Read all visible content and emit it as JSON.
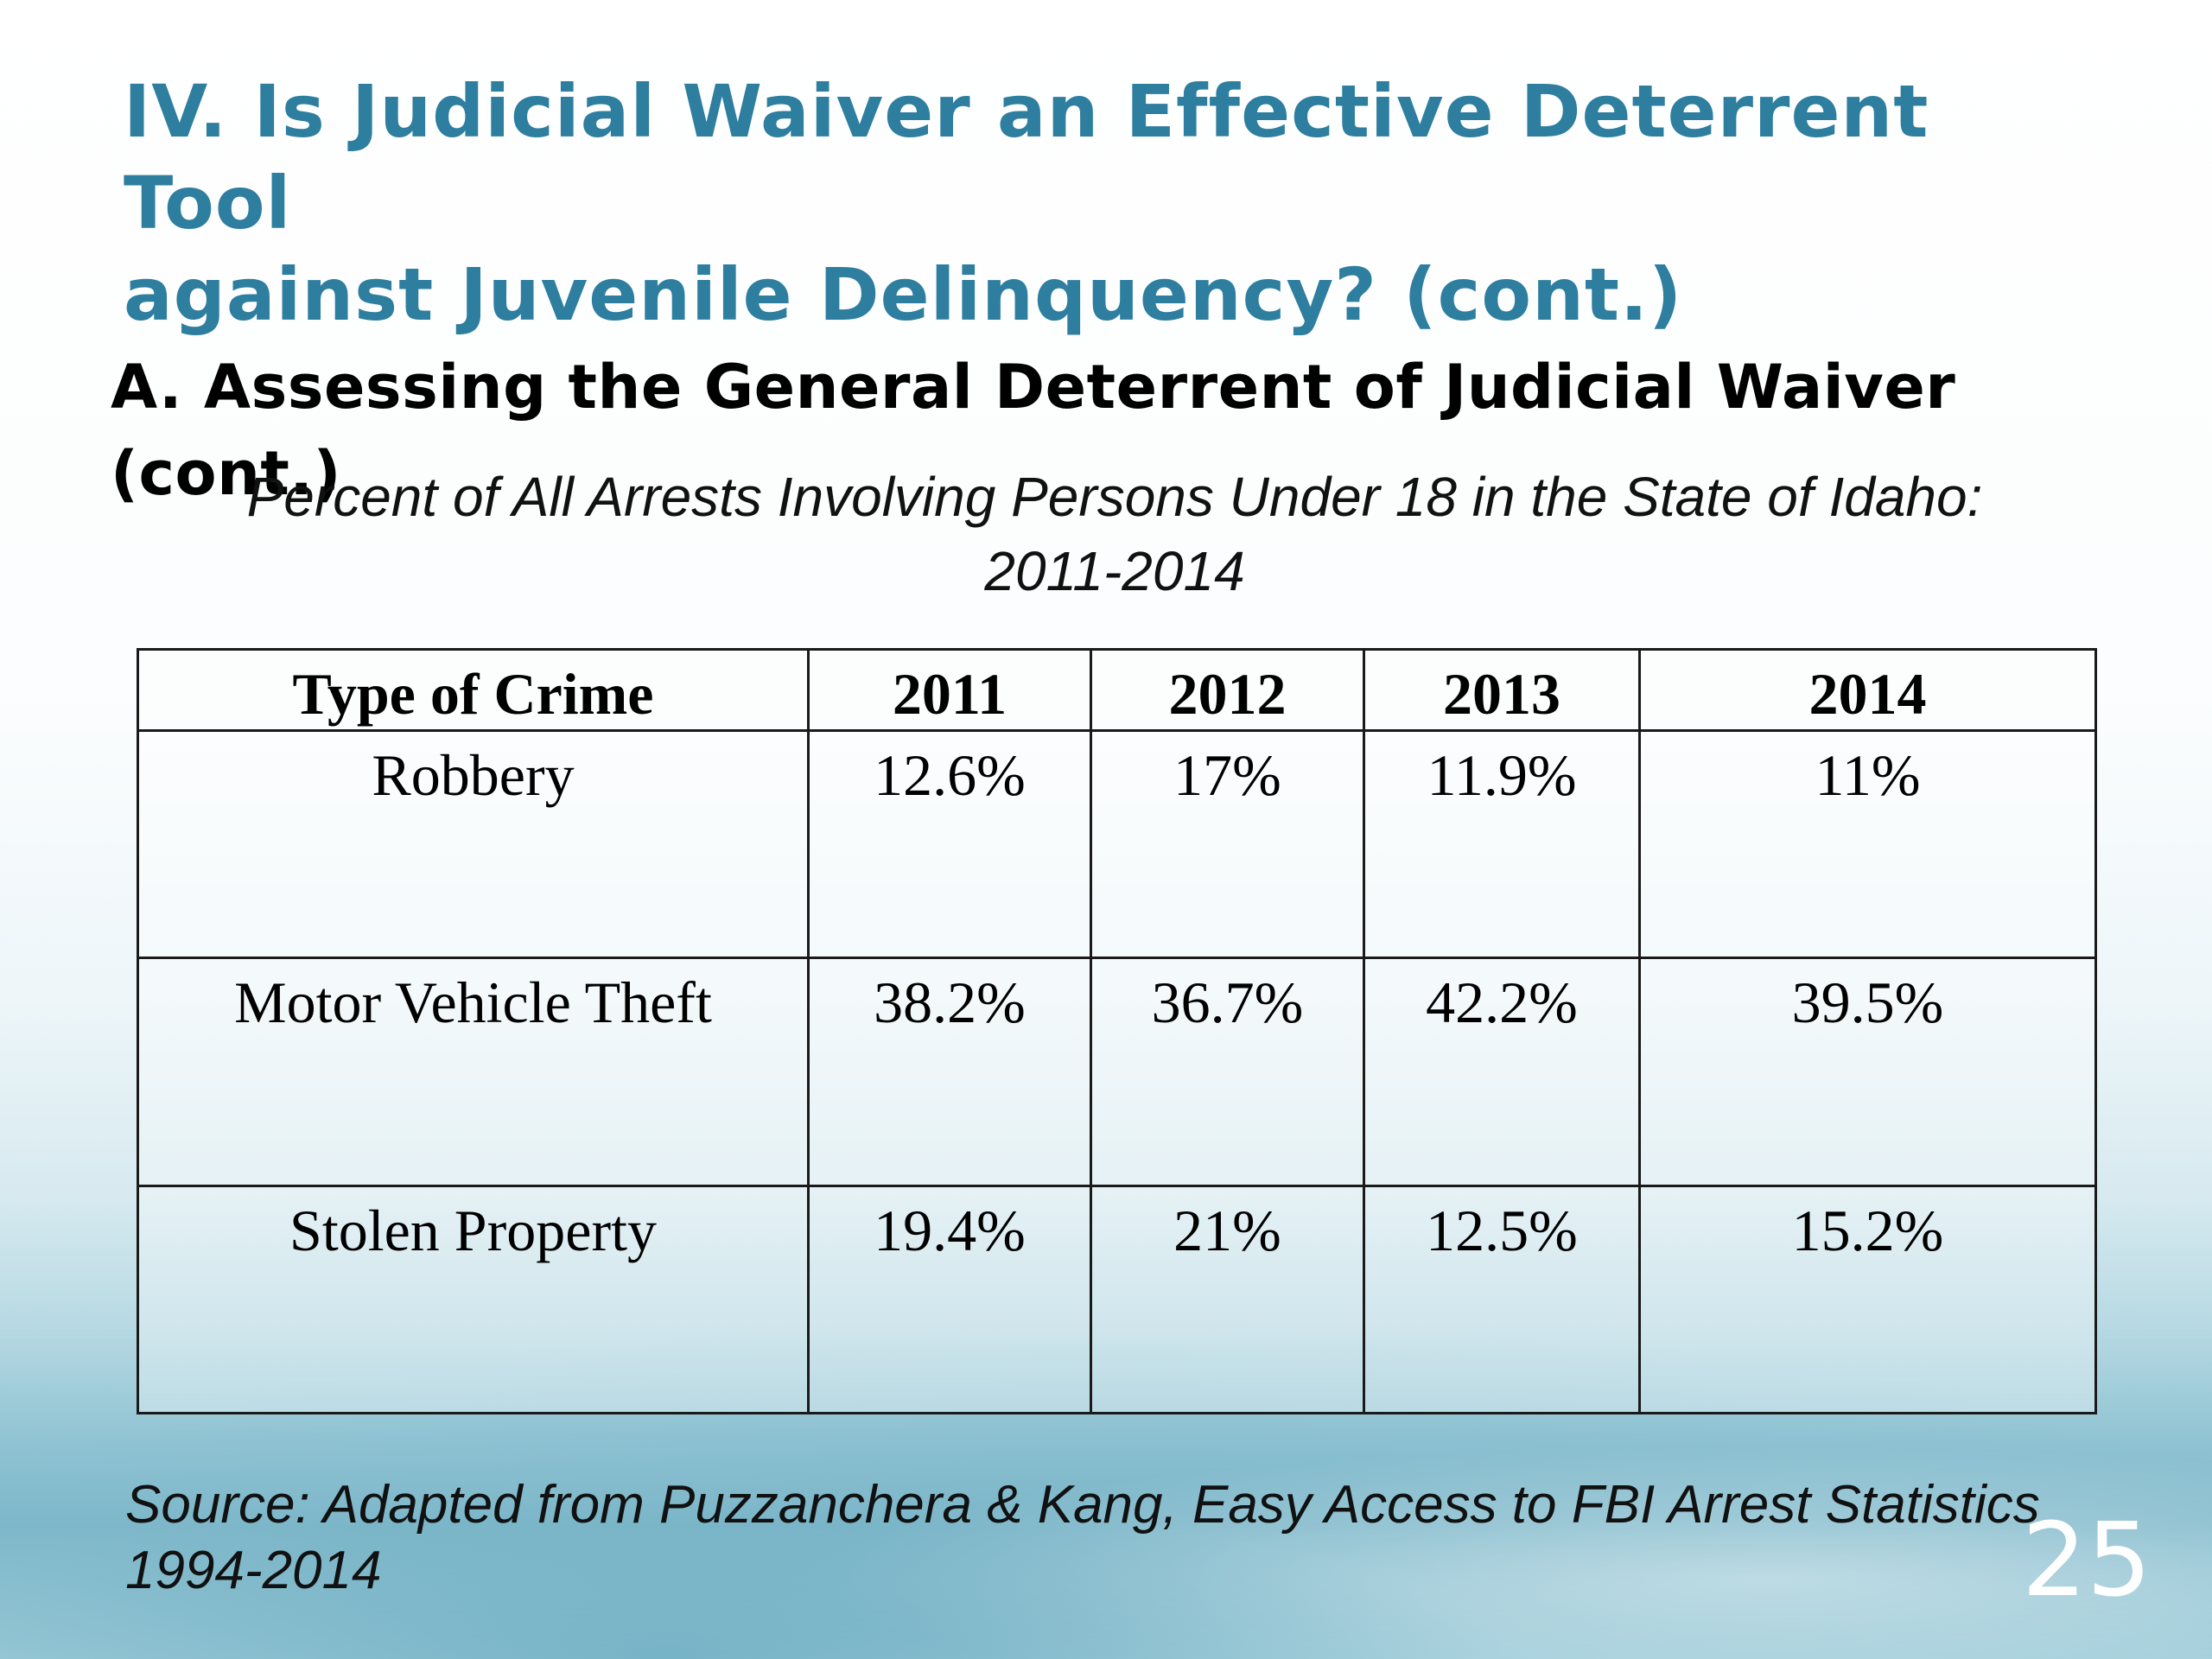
{
  "slide": {
    "title_lines": [
      "IV. Is Judicial Waiver an Effective Deterrent Tool",
      "against Juvenile Delinquency? (cont.)"
    ],
    "subheading": "A. Assessing the General Deterrent of Judicial Waiver (cont.)",
    "table_caption_lines": [
      "Percent of All Arrests Involving Persons Under 18 in the State of Idaho:",
      "2011-2014"
    ],
    "table": {
      "headers": [
        "Type of Crime",
        "2011",
        "2012",
        "2013",
        "2014"
      ],
      "rows": [
        [
          "Robbery",
          "12.6%",
          "17%",
          "11.9%",
          "11%"
        ],
        [
          "Motor Vehicle Theft",
          "38.2%",
          "36.7%",
          "42.2%",
          "39.5%"
        ],
        [
          "Stolen Property",
          "19.4%",
          "21%",
          "12.5%",
          "15.2%"
        ]
      ]
    },
    "source_lines": [
      "Source: Adapted from Puzzanchera & Kang, Easy Access to FBI Arrest Statistics",
      "1994-2014"
    ],
    "slide_number": "25"
  },
  "colors": {
    "title": "#2e7ea0",
    "text": "#000000",
    "slide_number": "#ffffff"
  }
}
